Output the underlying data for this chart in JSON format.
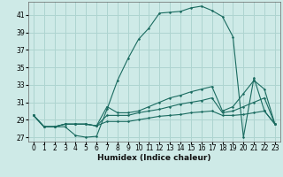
{
  "xlabel": "Humidex (Indice chaleur)",
  "bg_color": "#ceeae7",
  "grid_color": "#aed4d0",
  "line_color": "#1a6b60",
  "xlim": [
    -0.5,
    23.5
  ],
  "ylim": [
    26.5,
    42.5
  ],
  "yticks": [
    27,
    29,
    31,
    33,
    35,
    37,
    39,
    41
  ],
  "xticks": [
    0,
    1,
    2,
    3,
    4,
    5,
    6,
    7,
    8,
    9,
    10,
    11,
    12,
    13,
    14,
    15,
    16,
    17,
    18,
    19,
    20,
    21,
    22,
    23
  ],
  "series": [
    [
      29.5,
      28.2,
      28.2,
      28.2,
      27.2,
      27.0,
      27.1,
      30.2,
      33.5,
      36.0,
      38.2,
      39.5,
      41.2,
      41.3,
      41.4,
      41.8,
      42.0,
      41.5,
      40.8,
      38.5,
      27.0,
      33.8,
      30.0,
      28.5
    ],
    [
      29.5,
      28.2,
      28.2,
      28.5,
      28.5,
      28.5,
      28.3,
      30.5,
      29.8,
      29.8,
      30.0,
      30.5,
      31.0,
      31.5,
      31.8,
      32.2,
      32.5,
      32.8,
      30.0,
      30.5,
      32.0,
      33.5,
      32.5,
      28.5
    ],
    [
      29.5,
      28.2,
      28.2,
      28.5,
      28.5,
      28.5,
      28.3,
      29.5,
      29.5,
      29.5,
      29.8,
      30.0,
      30.2,
      30.5,
      30.8,
      31.0,
      31.2,
      31.5,
      29.8,
      30.0,
      30.5,
      31.0,
      31.5,
      28.5
    ],
    [
      29.5,
      28.2,
      28.2,
      28.5,
      28.5,
      28.5,
      28.3,
      28.8,
      28.8,
      28.8,
      29.0,
      29.2,
      29.4,
      29.5,
      29.6,
      29.8,
      29.9,
      30.0,
      29.5,
      29.5,
      29.6,
      29.8,
      30.0,
      28.5
    ]
  ]
}
